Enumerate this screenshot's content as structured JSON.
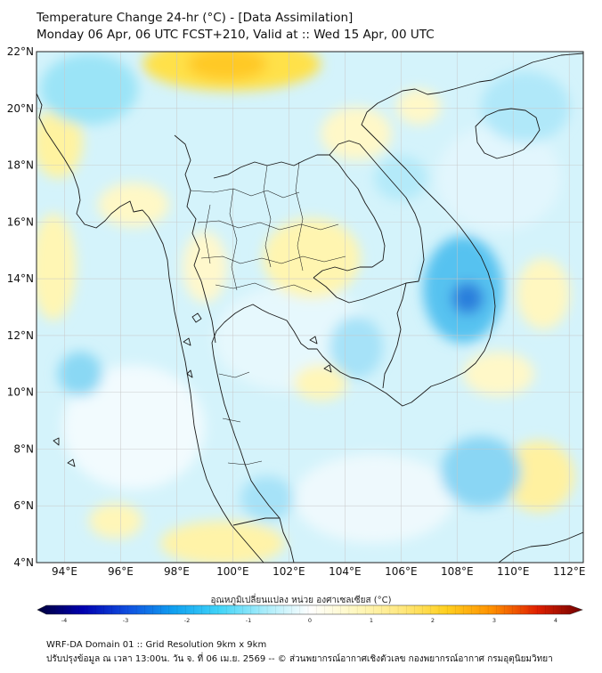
{
  "title": {
    "line1": "Temperature Change 24-hr (°C) - [Data Assimilation]",
    "line2": "Monday 06 Apr, 06 UTC FCST+210, Valid at :: Wed 15 Apr, 00 UTC"
  },
  "map": {
    "lat_range": [
      4,
      22
    ],
    "lon_range": [
      93,
      112.5
    ],
    "lat_ticks": [
      "22°N",
      "20°N",
      "18°N",
      "16°N",
      "14°N",
      "12°N",
      "10°N",
      "8°N",
      "6°N",
      "4°N"
    ],
    "lon_ticks": [
      "94°E",
      "96°E",
      "98°E",
      "100°E",
      "102°E",
      "104°E",
      "106°E",
      "108°E",
      "110°E",
      "112°E"
    ],
    "gridlines": true
  },
  "colorbar": {
    "label": "อุณหภูมิเปลี่ยนแปลง หน่วย องศาเซลเซียส (°C)",
    "min": -4,
    "max": 4,
    "tick_values": [
      -4,
      -3,
      -2,
      -1,
      0,
      1,
      2,
      3,
      4
    ],
    "tick_labels": [
      "-4",
      "-3",
      "-2",
      "-1",
      "0",
      "1",
      "2",
      "3",
      "4"
    ],
    "colors": [
      "#00003a",
      "#0000b0",
      "#1050e0",
      "#10a0f0",
      "#40d4f8",
      "#a8ecfa",
      "#ffffff",
      "#fff8c0",
      "#ffe880",
      "#ffd020",
      "#ff9000",
      "#e02000",
      "#700000"
    ]
  },
  "footer": {
    "line1": "WRF-DA Domain 01 :: Grid Resolution 9km x 9km",
    "line2": "ปรับปรุงข้อมูล ณ เวลา 13:00น. วัน จ. ที่ 06 เม.ย. 2569 -- © ส่วนพยากรณ์อากาศเชิงตัวเลข กองพยากรณ์อากาศ กรมอุตุนิยมวิทยา"
  }
}
